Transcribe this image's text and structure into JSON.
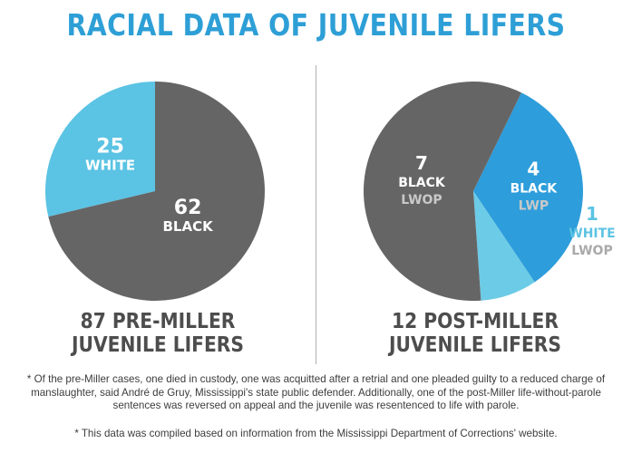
{
  "title": "RACIAL DATA OF JUVENILE LIFERS",
  "colors": {
    "title": "#2e9fd6",
    "black": "#666565",
    "white_pre": "#5bc3e3",
    "black_lwp": "#2d9ddb",
    "white_lwop": "#6ccbe6",
    "label_light": "#ffffff",
    "label_muted": "#c9c9c9",
    "outside_label": "#5bc3e3",
    "outside_sub": "#a9a9a9"
  },
  "chart_data": [
    {
      "type": "pie",
      "caption_line1": "87 PRE-MILLER",
      "caption_line2": "JUVENILE LIFERS",
      "slices": [
        {
          "value": 25,
          "label": "WHITE",
          "sub": ""
        },
        {
          "value": 62,
          "label": "BLACK",
          "sub": ""
        }
      ]
    },
    {
      "type": "pie",
      "caption_line1": "12 POST-MILLER",
      "caption_line2": "JUVENILE LIFERS",
      "slices": [
        {
          "value": 4,
          "label": "BLACK",
          "sub": "LWP"
        },
        {
          "value": 1,
          "label": "WHITE",
          "sub": "LWOP"
        },
        {
          "value": 7,
          "label": "BLACK",
          "sub": "LWOP"
        }
      ]
    }
  ],
  "footnotes": {
    "note1_line1": "* Of the pre-Miller cases, one died in custody, one was acquitted after a retrial and one pleaded guilty to a reduced charge of",
    "note1_line2": "manslaughter, said André de Gruy, Mississippi's state public defender. Additionally, one of the post-Miller life-without-parole",
    "note1_line3": "sentences was reversed on appeal and the juvenile was resentenced to life with parole.",
    "note2": "* This data was compiled based on information from the Mississippi Department of Corrections' website."
  }
}
